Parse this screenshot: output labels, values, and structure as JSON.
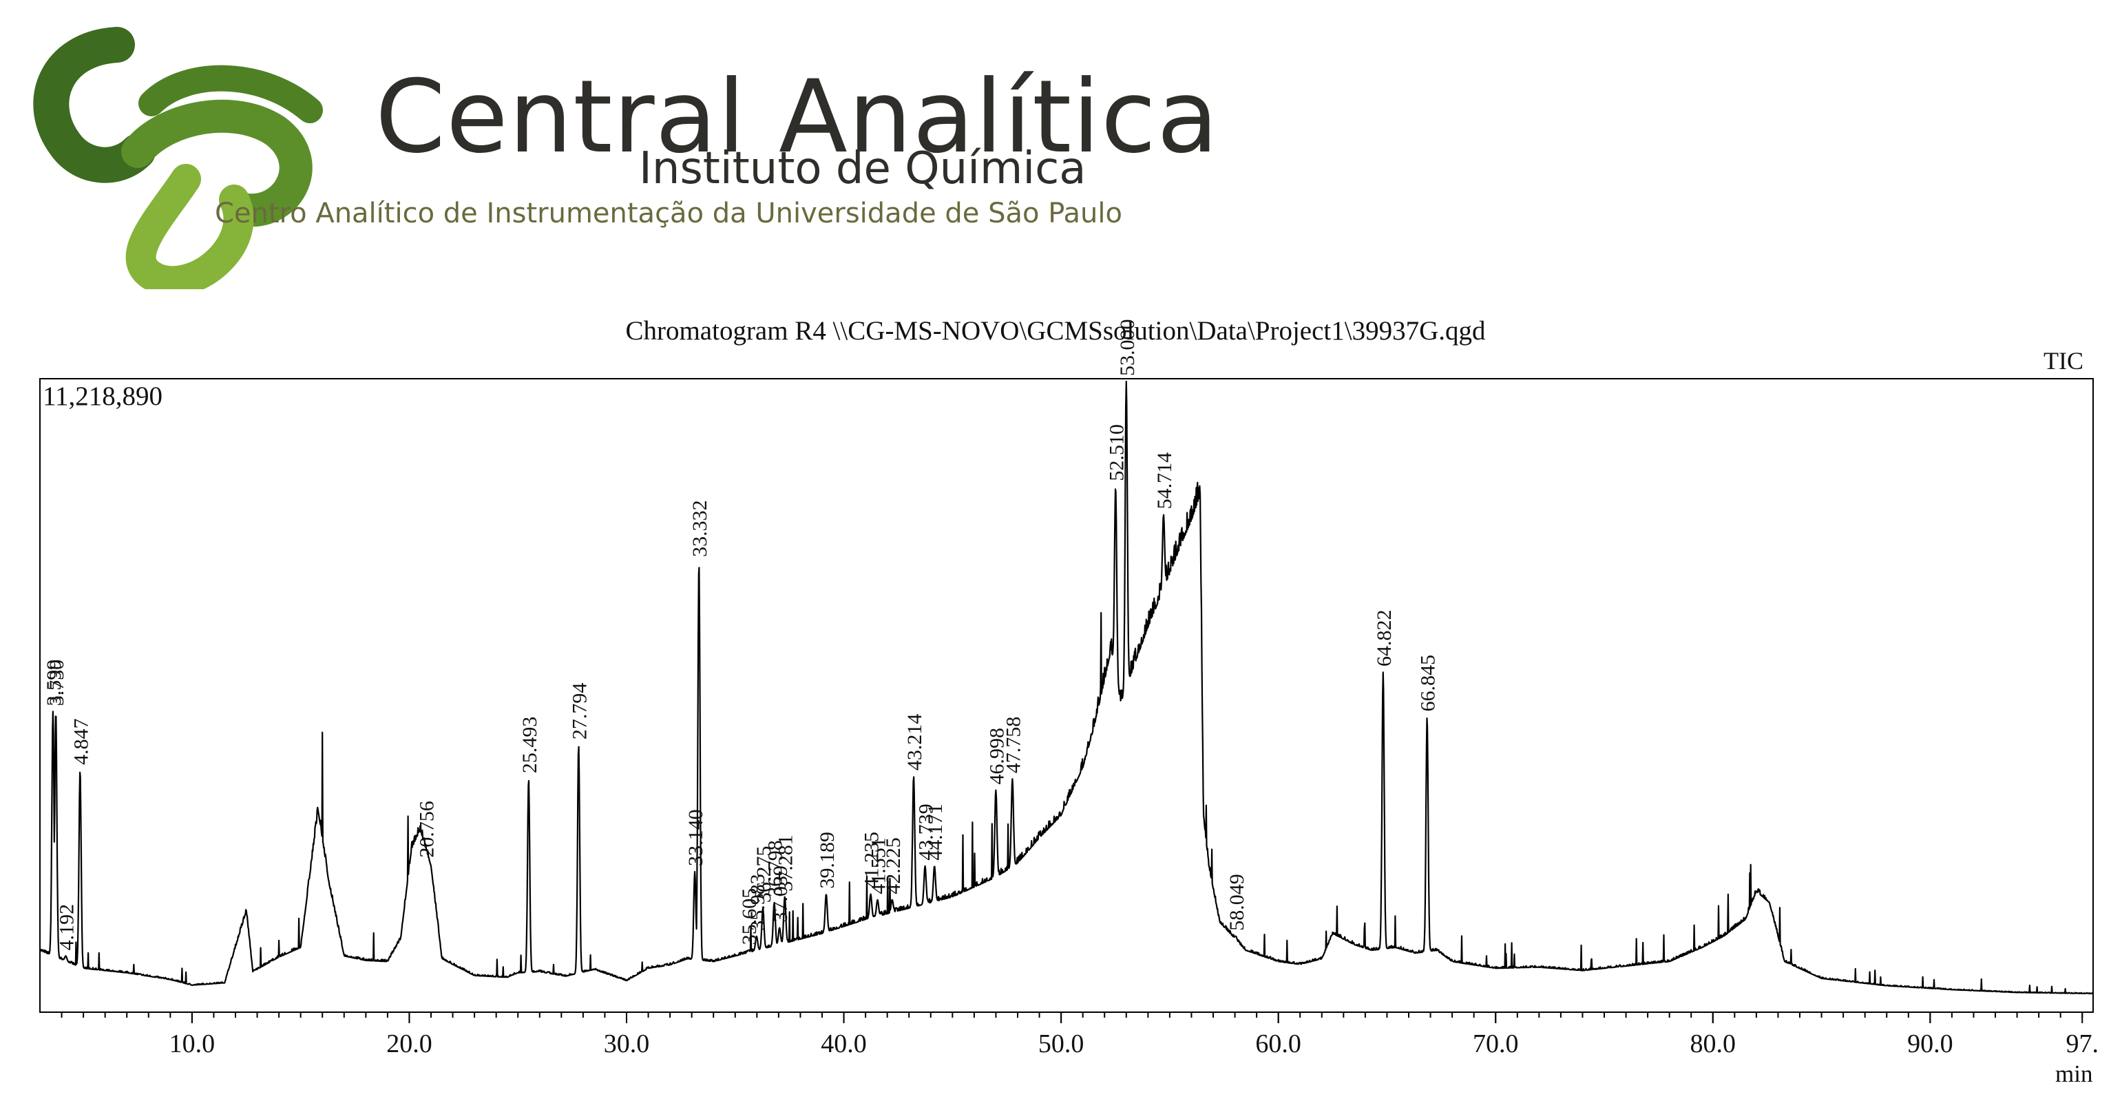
{
  "header": {
    "logo_name": "Central Analítica",
    "logo_subtitle": "Instituto de Química",
    "logo_tagline": "Centro Analítico de Instrumentação da Universidade de São Paulo",
    "logo_colors": {
      "dark_green": "#3d6b1f",
      "light_green": "#86b33a"
    }
  },
  "chart_data": {
    "type": "line",
    "title": "Chromatogram R4 \\\\CG-MS-NOVO\\GCMSsolution\\Data\\Project1\\39937G.qgd",
    "trace_label": "TIC",
    "ymax_label": "11,218,890",
    "xunit": "min",
    "xlim": [
      3.0,
      97.5
    ],
    "ylim": [
      0,
      11218890
    ],
    "x_ticks": [
      {
        "value": 10,
        "label": "10.0"
      },
      {
        "value": 20,
        "label": "20.0"
      },
      {
        "value": 30,
        "label": "30.0"
      },
      {
        "value": 40,
        "label": "40.0"
      },
      {
        "value": 50,
        "label": "50.0"
      },
      {
        "value": 60,
        "label": "60.0"
      },
      {
        "value": 70,
        "label": "70.0"
      },
      {
        "value": 80,
        "label": "80.0"
      },
      {
        "value": 90,
        "label": "90.0"
      },
      {
        "value": 97,
        "label": "97."
      }
    ],
    "peaks": [
      {
        "label": "3.599",
        "x": 3.599,
        "y": 5350000
      },
      {
        "label": "3.730",
        "x": 3.73,
        "y": 5350000
      },
      {
        "label": "4.192",
        "x": 4.192,
        "y": 1000000
      },
      {
        "label": "4.847",
        "x": 4.847,
        "y": 4300000
      },
      {
        "label": "20.756",
        "x": 20.756,
        "y": 2650000
      },
      {
        "label": "25.493",
        "x": 25.493,
        "y": 4150000
      },
      {
        "label": "27.794",
        "x": 27.794,
        "y": 4750000
      },
      {
        "label": "33.140",
        "x": 33.14,
        "y": 2500000
      },
      {
        "label": "33.332",
        "x": 33.332,
        "y": 8000000
      },
      {
        "label": "35.605",
        "x": 35.605,
        "y": 1100000
      },
      {
        "label": "35.983",
        "x": 35.983,
        "y": 1350000
      },
      {
        "label": "36.275",
        "x": 36.275,
        "y": 1850000
      },
      {
        "label": "36.798",
        "x": 36.798,
        "y": 1950000
      },
      {
        "label": "37.039",
        "x": 37.039,
        "y": 1500000
      },
      {
        "label": "37.281",
        "x": 37.281,
        "y": 2050000
      },
      {
        "label": "39.189",
        "x": 39.189,
        "y": 2100000
      },
      {
        "label": "41.235",
        "x": 41.235,
        "y": 2100000
      },
      {
        "label": "41.551",
        "x": 41.551,
        "y": 2000000
      },
      {
        "label": "42.225",
        "x": 42.225,
        "y": 2000000
      },
      {
        "label": "43.214",
        "x": 43.214,
        "y": 4200000
      },
      {
        "label": "43.739",
        "x": 43.739,
        "y": 2600000
      },
      {
        "label": "44.171",
        "x": 44.171,
        "y": 2600000
      },
      {
        "label": "46.998",
        "x": 46.998,
        "y": 3950000
      },
      {
        "label": "47.758",
        "x": 47.758,
        "y": 4150000
      },
      {
        "label": "52.510",
        "x": 52.51,
        "y": 9350000
      },
      {
        "label": "53.000",
        "x": 53.0,
        "y": 11218890
      },
      {
        "label": "54.714",
        "x": 54.714,
        "y": 8850000
      },
      {
        "label": "58.049",
        "x": 58.049,
        "y": 1350000
      },
      {
        "label": "64.822",
        "x": 64.822,
        "y": 6050000
      },
      {
        "label": "66.845",
        "x": 66.845,
        "y": 5250000
      }
    ],
    "baseline": [
      [
        3.0,
        1100000
      ],
      [
        5.0,
        780000
      ],
      [
        7.0,
        700000
      ],
      [
        9.0,
        580000
      ],
      [
        10.0,
        480000
      ],
      [
        11.5,
        520000
      ],
      [
        12.5,
        1800000
      ],
      [
        12.8,
        720000
      ],
      [
        14.0,
        980000
      ],
      [
        15.0,
        1150000
      ],
      [
        15.8,
        3600000
      ],
      [
        16.3,
        2300000
      ],
      [
        17.0,
        1000000
      ],
      [
        18.0,
        920000
      ],
      [
        19.0,
        900000
      ],
      [
        19.6,
        1300000
      ],
      [
        20.1,
        2900000
      ],
      [
        20.5,
        3250000
      ],
      [
        21.0,
        2600000
      ],
      [
        21.5,
        950000
      ],
      [
        23.0,
        650000
      ],
      [
        24.5,
        620000
      ],
      [
        25.0,
        700000
      ],
      [
        26.0,
        720000
      ],
      [
        27.2,
        640000
      ],
      [
        28.5,
        760000
      ],
      [
        30.0,
        560000
      ],
      [
        31.0,
        780000
      ],
      [
        32.0,
        840000
      ],
      [
        32.8,
        950000
      ],
      [
        34.0,
        900000
      ],
      [
        35.0,
        1000000
      ],
      [
        37.0,
        1200000
      ],
      [
        39.0,
        1400000
      ],
      [
        41.0,
        1650000
      ],
      [
        43.0,
        1850000
      ],
      [
        45.0,
        2050000
      ],
      [
        47.0,
        2400000
      ],
      [
        48.0,
        2650000
      ],
      [
        49.0,
        3100000
      ],
      [
        50.0,
        3500000
      ],
      [
        51.0,
        4350000
      ],
      [
        51.5,
        5050000
      ],
      [
        52.0,
        5900000
      ],
      [
        52.3,
        6450000
      ],
      [
        52.75,
        5500000
      ],
      [
        53.3,
        6100000
      ],
      [
        54.0,
        6850000
      ],
      [
        55.0,
        7800000
      ],
      [
        55.5,
        8300000
      ],
      [
        56.0,
        8750000
      ],
      [
        56.4,
        9200000
      ],
      [
        56.55,
        3500000
      ],
      [
        56.8,
        2600000
      ],
      [
        57.3,
        1600000
      ],
      [
        58.5,
        1100000
      ],
      [
        60.0,
        900000
      ],
      [
        61.0,
        850000
      ],
      [
        62.0,
        950000
      ],
      [
        62.5,
        1400000
      ],
      [
        63.5,
        1200000
      ],
      [
        64.3,
        1100000
      ],
      [
        65.4,
        1150000
      ],
      [
        66.3,
        1050000
      ],
      [
        67.3,
        1100000
      ],
      [
        68.0,
        900000
      ],
      [
        70.0,
        780000
      ],
      [
        72.0,
        800000
      ],
      [
        74.0,
        740000
      ],
      [
        76.0,
        820000
      ],
      [
        78.0,
        900000
      ],
      [
        79.5,
        1150000
      ],
      [
        80.5,
        1350000
      ],
      [
        81.5,
        1650000
      ],
      [
        82.0,
        2150000
      ],
      [
        82.6,
        1950000
      ],
      [
        83.3,
        900000
      ],
      [
        85.0,
        600000
      ],
      [
        88.0,
        470000
      ],
      [
        91.0,
        400000
      ],
      [
        94.0,
        350000
      ],
      [
        97.5,
        330000
      ]
    ]
  }
}
